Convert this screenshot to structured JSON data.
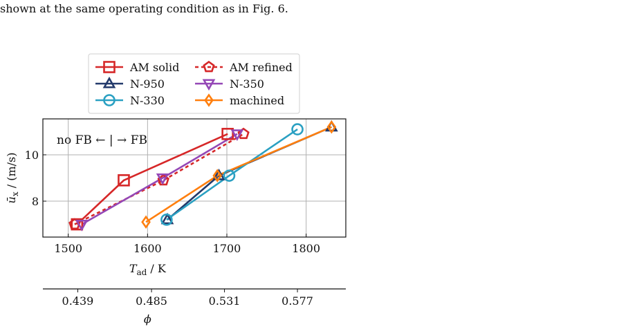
{
  "caption": "shown at the same operating condition as in Fig. 6.",
  "chart_data": {
    "type": "line",
    "xlabel_main": "T",
    "xlabel_sub": "ad",
    "xlabel_unit": " / K",
    "ylabel_main": "ū",
    "ylabel_sub": "x",
    "ylabel_unit": " / (m/s)",
    "xlim": [
      1468,
      1850
    ],
    "ylim": [
      6.45,
      11.55
    ],
    "xticks": [
      1500,
      1600,
      1700,
      1800
    ],
    "yticks": [
      8,
      10
    ],
    "xtick_labels": [
      "1500",
      "1600",
      "1700",
      "1800"
    ],
    "ytick_labels": [
      "8",
      "10"
    ],
    "grid": true,
    "legend_position": "above",
    "annotation": "no FB ← | → FB",
    "secondary_axis": {
      "label": "ϕ",
      "ticks": [
        1512,
        1605,
        1697,
        1789
      ],
      "tick_labels": [
        "0.439",
        "0.485",
        "0.531",
        "0.577"
      ]
    },
    "series": [
      {
        "name": "AM solid",
        "color": "#d62728",
        "marker": "square",
        "dashed": false,
        "x": [
          1511,
          1570,
          1701
        ],
        "y": [
          7.0,
          8.9,
          10.9
        ]
      },
      {
        "name": "AM refined",
        "color": "#d62728",
        "marker": "pentagon",
        "dashed": true,
        "x": [
          1508,
          1620,
          1721
        ],
        "y": [
          7.0,
          8.9,
          10.9
        ]
      },
      {
        "name": "N-950",
        "color": "#233a6b",
        "marker": "triangle-up",
        "dashed": false,
        "x": [
          1625,
          1690,
          1832
        ],
        "y": [
          7.2,
          9.1,
          11.2
        ]
      },
      {
        "name": "N-350",
        "color": "#9447b6",
        "marker": "triangle-down",
        "dashed": false,
        "x": [
          1517,
          1619,
          1713
        ],
        "y": [
          7.0,
          9.0,
          10.9
        ]
      },
      {
        "name": "N-330",
        "color": "#2aa0c2",
        "marker": "circle",
        "dashed": false,
        "x": [
          1624,
          1703,
          1789
        ],
        "y": [
          7.2,
          9.1,
          11.1
        ]
      },
      {
        "name": "machined",
        "color": "#ff7f0e",
        "marker": "diamond",
        "dashed": false,
        "x": [
          1598,
          1688,
          1832
        ],
        "y": [
          7.1,
          9.1,
          11.2
        ]
      }
    ]
  }
}
